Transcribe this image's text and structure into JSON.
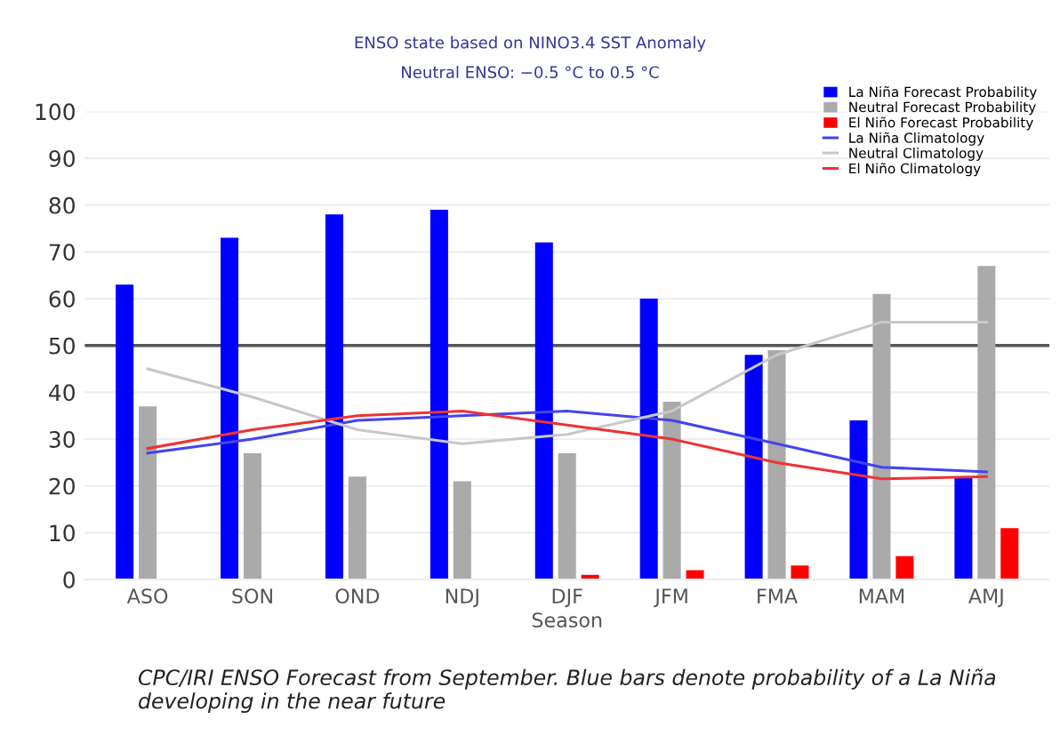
{
  "chart_data": {
    "type": "bar",
    "title": "ENSO state based on NINO3.4 SST Anomaly",
    "subtitle": "Neutral ENSO: −0.5 °C to 0.5 °C",
    "xlabel": "Season",
    "categories": [
      "ASO",
      "SON",
      "OND",
      "NDJ",
      "DJF",
      "JFM",
      "FMA",
      "MAM",
      "AMJ"
    ],
    "series": [
      {
        "name": "La Niña Forecast Probability",
        "color": "#0000ff",
        "values": [
          63,
          73,
          78,
          79,
          72,
          60,
          48,
          34,
          22
        ]
      },
      {
        "name": "Neutral Forecast Probability",
        "color": "#aaaaaa",
        "values": [
          37,
          27,
          22,
          21,
          27,
          38,
          49,
          61,
          67
        ]
      },
      {
        "name": "El Niño Forecast Probability",
        "color": "#ff0000",
        "values": [
          0,
          0,
          0,
          0,
          1,
          2,
          3,
          5,
          11
        ]
      },
      {
        "name": "La Niña Climatology",
        "type": "line",
        "color": "#4444ee",
        "values": [
          27,
          30,
          34,
          35,
          36,
          34,
          29,
          24,
          23
        ]
      },
      {
        "name": "Neutral Climatology",
        "type": "line",
        "color": "#c8c8c8",
        "values": [
          45,
          39,
          32,
          29,
          31,
          36,
          48,
          55,
          55
        ]
      },
      {
        "name": "El Niño Climatology",
        "type": "line",
        "color": "#ee3333",
        "values": [
          28,
          32,
          35,
          36,
          33,
          30,
          25,
          21.5,
          22
        ]
      }
    ],
    "ylim": [
      0,
      100
    ],
    "yticks": [
      0,
      10,
      20,
      30,
      40,
      50,
      60,
      70,
      80,
      90,
      100
    ],
    "grid": "y",
    "legend": "top right",
    "line_style": "solid",
    "marker": "none",
    "ref_lines": [
      {
        "axis": "y",
        "value": 50,
        "color": "#555555"
      }
    ],
    "annotations": [
      "CPC/IRI ENSO Forecast from September. Blue bars denote probability of a La Niña developing in the near future"
    ]
  }
}
